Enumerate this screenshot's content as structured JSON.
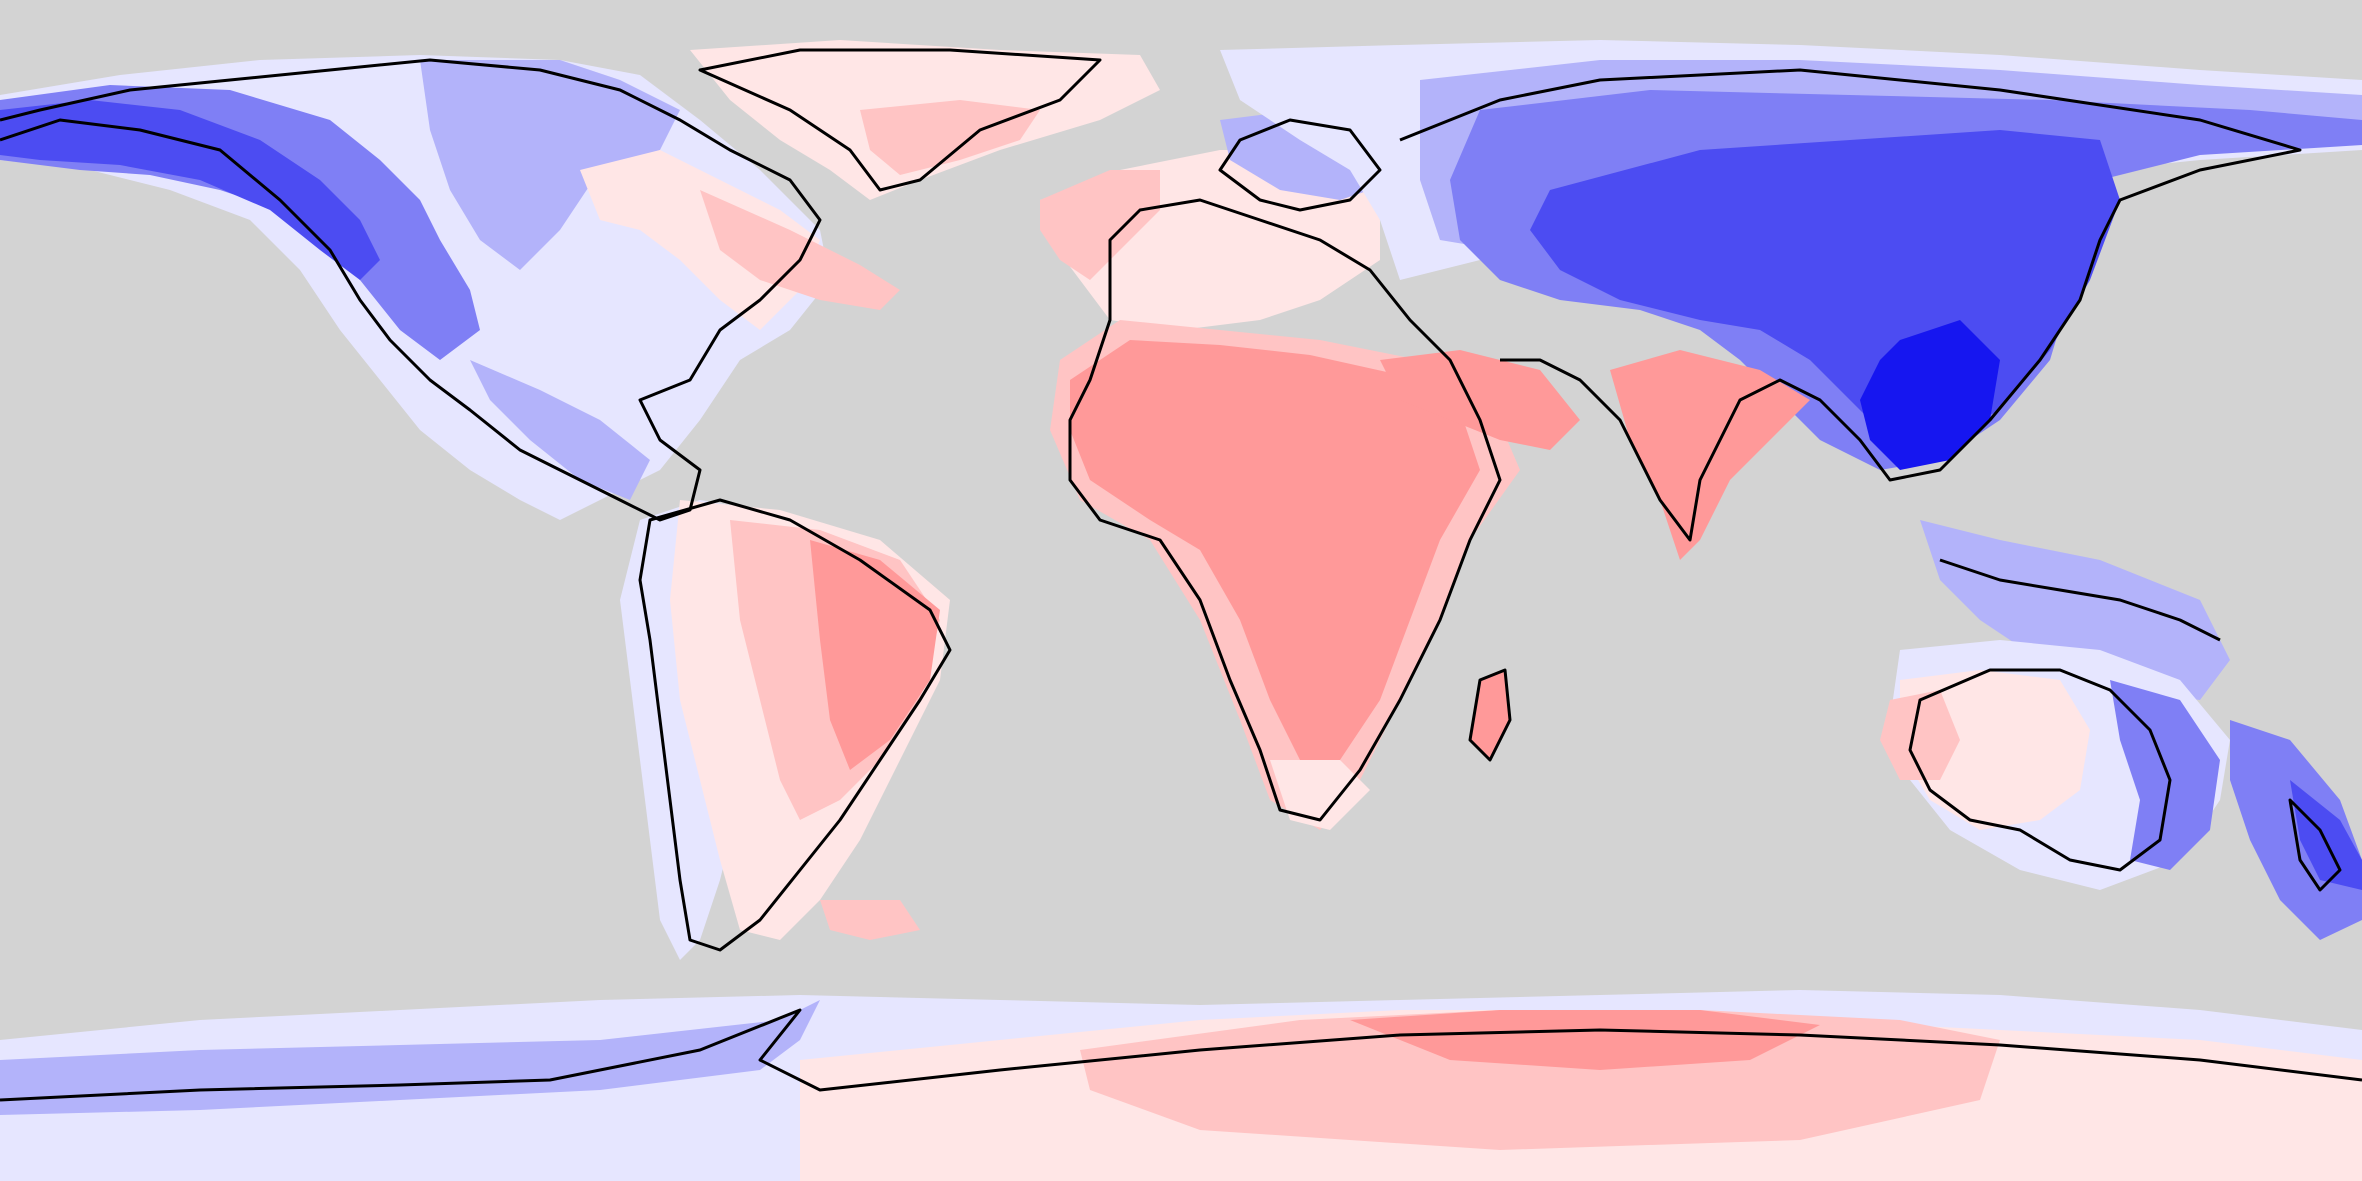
{
  "map": {
    "projection": "equirectangular",
    "extent": {
      "lon": [
        -180,
        180
      ],
      "lat": [
        -90,
        90
      ]
    },
    "background_color": "#d3d3d3",
    "coastline_color": "#000000",
    "palette": {
      "strong_blue": "#1616f0",
      "blue": "#4c4cf2",
      "mid_blue": "#7f7ff5",
      "light_blue": "#b3b3fa",
      "pale_blue": "#e6e6ff",
      "pale_red": "#ffe6e6",
      "light_red": "#ffc4c4",
      "red": "#ff9999",
      "strong_red": "#ff7a7a"
    },
    "legend": null,
    "title": ""
  }
}
